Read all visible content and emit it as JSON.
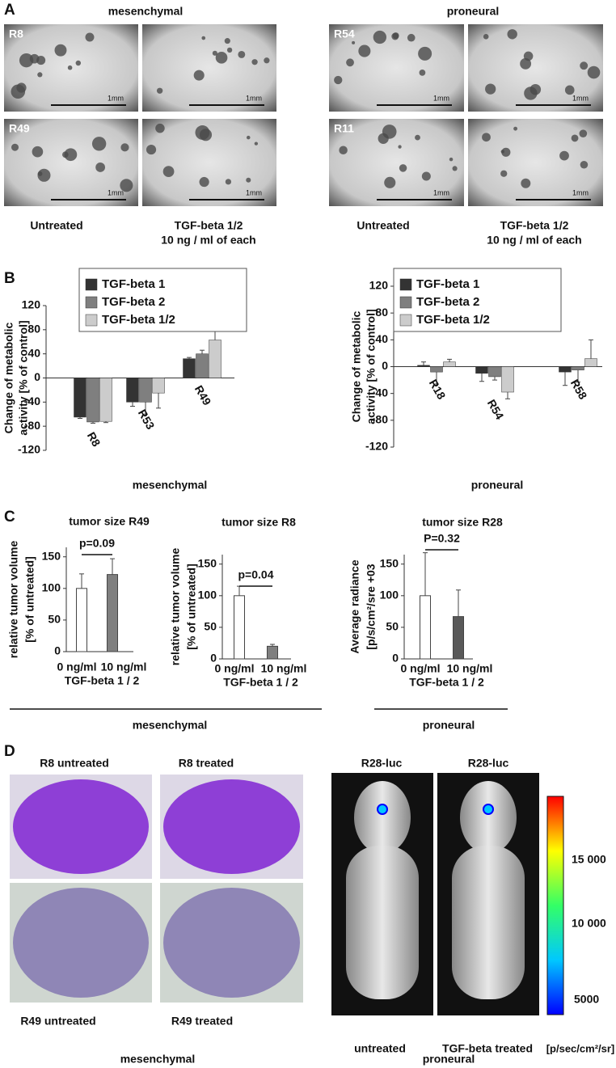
{
  "panel_labels": [
    "A",
    "B",
    "C",
    "D"
  ],
  "panel_a": {
    "groups": [
      "mesenchymal",
      "proneural"
    ],
    "samples": [
      "R8",
      "R49",
      "R54",
      "R11"
    ],
    "scale_label": "1mm",
    "untreated": "Untreated",
    "treated": [
      "TGF-beta 1/2",
      "10 ng / ml of each"
    ]
  },
  "panel_b_groups": [
    "mesenchymal",
    "proneural"
  ],
  "panel_c_groups": [
    "mesenchymal",
    "proneural"
  ],
  "panel_d": {
    "brain_labels": [
      "R8 untreated",
      "R8 treated",
      "R49 untreated",
      "R49 treated"
    ],
    "mouse_titles": [
      "R28-luc",
      "R28-luc"
    ],
    "mouse_labels": [
      "untreated",
      "TGF-beta treated"
    ],
    "colorbar_labels": [
      "15 000",
      "10 000",
      "5000"
    ],
    "colorbar_unit": "[p/sec/cm²/sr]",
    "groups": [
      "mesenchymal",
      "proneural"
    ]
  },
  "chart_data": [
    {
      "type": "grouped-bar",
      "y_label": [
        "Change of metabolic",
        "activity [% of control]"
      ],
      "categories": [
        "R8",
        "R53",
        "R49"
      ],
      "series": [
        {
          "name": "TGF-beta 1",
          "color": "#333333",
          "values": [
            -65,
            -40,
            32
          ],
          "errors": [
            2,
            7,
            2
          ]
        },
        {
          "name": "TGF-beta 2",
          "color": "#7f7f7f",
          "values": [
            -73,
            -40,
            40
          ],
          "errors": [
            2,
            20,
            6
          ]
        },
        {
          "name": "TGF-beta 1/2",
          "color": "#cccccc",
          "values": [
            -72,
            -25,
            63
          ],
          "errors": [
            2,
            25,
            20
          ]
        }
      ],
      "ylim": [
        -120,
        120
      ],
      "yticks": [
        -120,
        -80,
        -40,
        0,
        40,
        80,
        120
      ]
    },
    {
      "type": "grouped-bar",
      "y_label": [
        "Change of metabolic",
        "activity [% of control]"
      ],
      "categories": [
        "R18",
        "R54",
        "R58"
      ],
      "series": [
        {
          "name": "TGF-beta 1",
          "color": "#333333",
          "values": [
            2,
            -10,
            -8
          ],
          "errors": [
            5,
            12,
            20
          ]
        },
        {
          "name": "TGF-beta 2",
          "color": "#7f7f7f",
          "values": [
            -8,
            -15,
            -5
          ],
          "errors": [
            18,
            5,
            18
          ]
        },
        {
          "name": "TGF-beta 1/2",
          "color": "#cccccc",
          "values": [
            7,
            -38,
            12
          ],
          "errors": [
            4,
            10,
            28
          ]
        }
      ],
      "ylim": [
        -120,
        120
      ],
      "yticks": [
        -120,
        -80,
        -40,
        0,
        40,
        80,
        120
      ]
    },
    {
      "type": "bar",
      "title": "tumor size R49",
      "y_label": [
        "relative tumor volume",
        "[% of untreated]"
      ],
      "categories": [
        "0 ng/ml",
        "10 ng/ml"
      ],
      "x_label": "TGF-beta 1 / 2",
      "values": [
        100,
        122
      ],
      "errors": [
        23,
        25
      ],
      "colors": [
        "#ffffff",
        "#7f7f7f"
      ],
      "annotation": "p=0.09",
      "ylim": [
        0,
        165
      ],
      "yticks": [
        0,
        50,
        100,
        150
      ]
    },
    {
      "type": "bar",
      "title": "tumor size R8",
      "y_label": [
        "relative tumor volume",
        "[% of untreated]"
      ],
      "categories": [
        "0 ng/ml",
        "10 ng/ml"
      ],
      "x_label": "TGF-beta 1 / 2",
      "values": [
        100,
        20
      ],
      "errors": [
        15,
        3
      ],
      "colors": [
        "#ffffff",
        "#7f7f7f"
      ],
      "annotation": "p=0.04",
      "ylim": [
        0,
        165
      ],
      "yticks": [
        0,
        50,
        100,
        150
      ]
    },
    {
      "type": "bar",
      "title": "tumor size R28",
      "y_label": [
        "Average  radiance",
        "[p/s/cm²/sre +03"
      ],
      "categories": [
        "0 ng/ml",
        "10 ng/ml"
      ],
      "x_label": "TGF-beta 1 / 2",
      "values": [
        100,
        67
      ],
      "errors": [
        68,
        42
      ],
      "colors": [
        "#ffffff",
        "#595959"
      ],
      "annotation": "P=0.32",
      "ylim": [
        0,
        165
      ],
      "yticks": [
        0,
        50,
        100,
        150
      ]
    }
  ]
}
